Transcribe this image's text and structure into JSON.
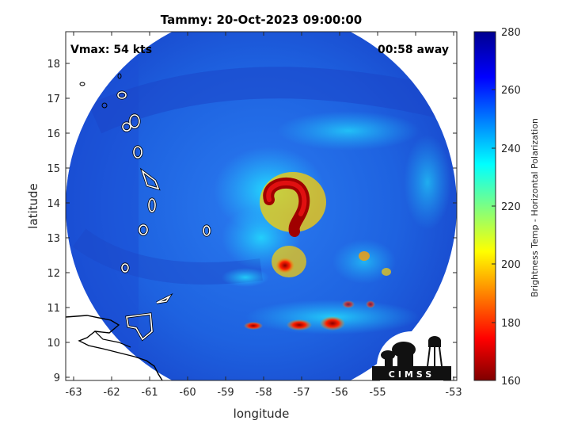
{
  "title": "Tammy: 20-Oct-2023 09:00:00",
  "vmax_label": "Vmax: 54 kts",
  "time_away_label": "00:58 away",
  "axes": {
    "xlabel": "longitude",
    "ylabel": "latitude",
    "xlim": [
      -63.2,
      -52.9
    ],
    "ylim": [
      8.9,
      18.9
    ],
    "xticks": [
      -63,
      -62,
      -61,
      -60,
      -59,
      -58,
      -57,
      -56,
      -55,
      -54,
      -53
    ],
    "yticks": [
      9,
      10,
      11,
      12,
      13,
      14,
      15,
      16,
      17,
      18
    ]
  },
  "colorbar": {
    "label": "Brightness Temp - Horizontal Polarization",
    "range": [
      160,
      280
    ],
    "ticks": [
      160,
      180,
      200,
      220,
      240,
      260,
      280
    ],
    "colormap": [
      "#7f0000",
      "#ff0000",
      "#ffff00",
      "#00ffff",
      "#0000ff",
      "#00008f"
    ]
  },
  "swath": {
    "center_lon": -58.0,
    "center_lat": 13.9,
    "radius_deg": 5.0,
    "base_color": "#1e5bdc"
  },
  "storm": {
    "eyewall_center": [
      -57.7,
      14.05
    ],
    "min_brightness_temp_approx": 165
  },
  "logo": {
    "text": "CIMSS"
  }
}
